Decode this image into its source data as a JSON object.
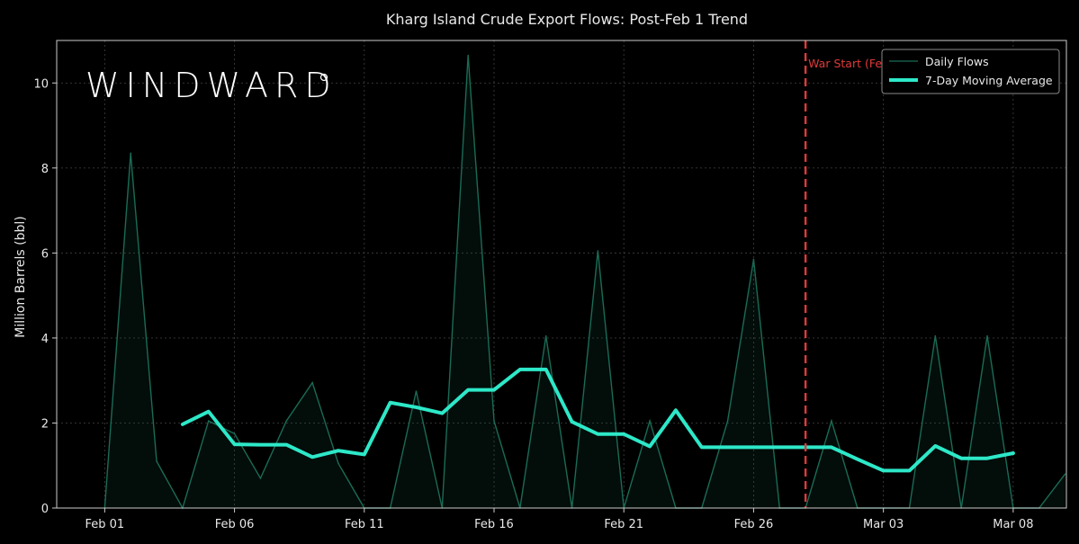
{
  "chart_data": {
    "type": "line",
    "title": "Kharg Island Crude Export Flows: Post-Feb 1 Trend",
    "ylabel": "Million Barrels (bbl)",
    "xlabel": "",
    "ylim": [
      0,
      11
    ],
    "yticks": [
      0,
      2,
      4,
      6,
      8,
      10
    ],
    "x_start": "2026-02-01",
    "x_tick_labels": [
      "Feb 01",
      "Feb 06",
      "Feb 11",
      "Feb 16",
      "Feb 21",
      "Feb 26",
      "Mar 03",
      "Mar 08"
    ],
    "grid": true,
    "legend_position": "top-right",
    "x": [
      "Feb 01",
      "Feb 02",
      "Feb 03",
      "Feb 04",
      "Feb 05",
      "Feb 06",
      "Feb 07",
      "Feb 08",
      "Feb 09",
      "Feb 10",
      "Feb 11",
      "Feb 12",
      "Feb 13",
      "Feb 14",
      "Feb 15",
      "Feb 16",
      "Feb 17",
      "Feb 18",
      "Feb 19",
      "Feb 20",
      "Feb 21",
      "Feb 22",
      "Feb 23",
      "Feb 24",
      "Feb 25",
      "Feb 26",
      "Feb 27",
      "Feb 28",
      "Mar 01",
      "Mar 02",
      "Mar 03",
      "Mar 04",
      "Mar 05",
      "Mar 06",
      "Mar 07",
      "Mar 08",
      "Mar 09",
      "Mar 10"
    ],
    "series": [
      {
        "name": "Daily Flows",
        "color": "#1a6b55",
        "values": [
          0,
          8.35,
          1.1,
          0,
          2.05,
          1.75,
          0.7,
          2.05,
          2.95,
          1.05,
          0,
          0,
          2.75,
          0,
          10.65,
          2.05,
          0,
          4.05,
          0,
          6.05,
          0,
          2.05,
          0,
          0,
          2.05,
          5.85,
          0,
          0,
          2.05,
          0,
          0,
          0,
          4.05,
          0,
          4.05,
          0,
          0,
          0.8
        ]
      },
      {
        "name": "7-Day Moving Average",
        "color": "#2de8c8",
        "values": [
          null,
          null,
          null,
          1.97,
          2.27,
          1.5,
          1.49,
          1.49,
          1.2,
          1.35,
          1.26,
          2.48,
          2.37,
          2.23,
          2.78,
          2.78,
          3.26,
          3.26,
          2.03,
          1.74,
          1.74,
          1.45,
          2.3,
          1.43,
          1.43,
          1.43,
          1.43,
          1.43,
          1.43,
          1.15,
          0.88,
          0.88,
          1.46,
          1.17,
          1.17,
          1.29,
          null,
          null
        ]
      }
    ],
    "annotations": [
      {
        "text": "War Start (Feb 28)",
        "x": "Feb 28",
        "color": "#e03a3a"
      }
    ],
    "colors": {
      "background": "#000000",
      "grid": "#3a3a3a",
      "axis": "#cccccc",
      "text": "#e8e8e8",
      "war_line": "#e03a3a"
    }
  },
  "watermark": {
    "text": "WINDWARD"
  }
}
